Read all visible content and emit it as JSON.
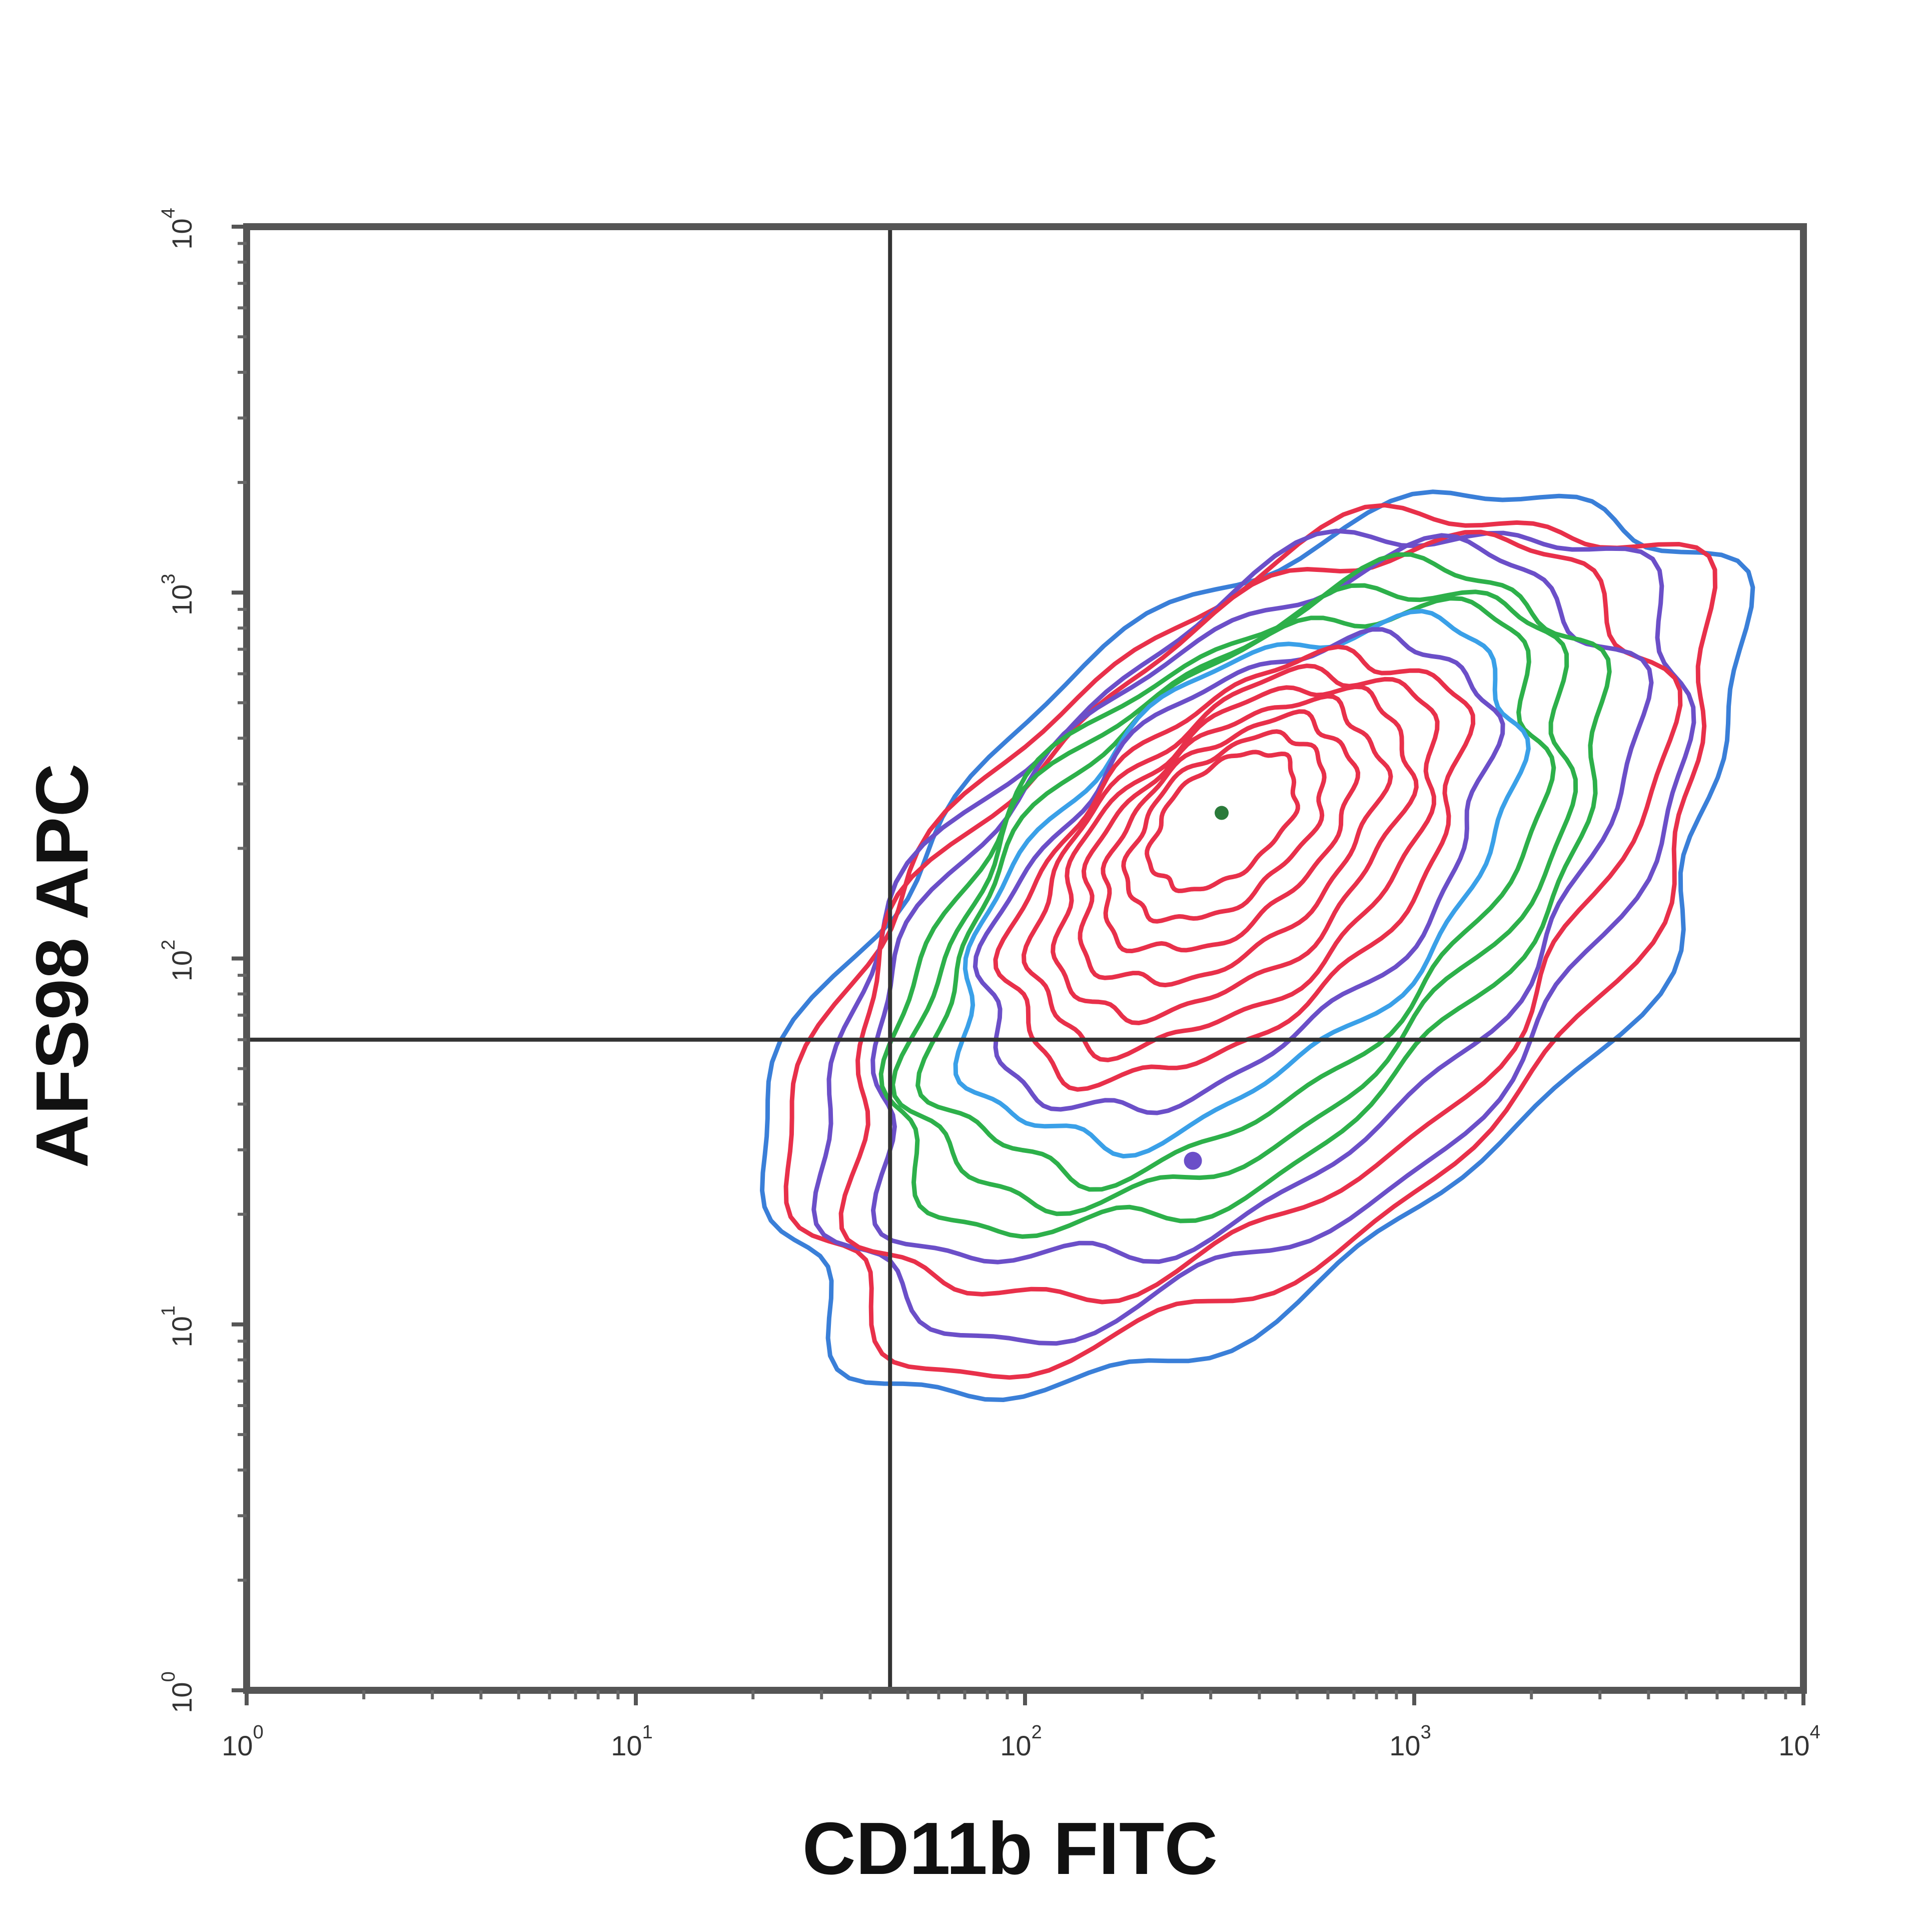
{
  "chart_data": {
    "type": "contour",
    "xlabel": "CD11b FITC",
    "ylabel": "AFS98 APC",
    "x_scale": "log",
    "y_scale": "log",
    "xlim": [
      1,
      10000
    ],
    "ylim": [
      1,
      10000
    ],
    "x_ticks": [
      {
        "value": 1,
        "base": "10",
        "exp": "0"
      },
      {
        "value": 10,
        "base": "10",
        "exp": "1"
      },
      {
        "value": 100,
        "base": "10",
        "exp": "2"
      },
      {
        "value": 1000,
        "base": "10",
        "exp": "3"
      },
      {
        "value": 10000,
        "base": "10",
        "exp": "4"
      }
    ],
    "y_ticks": [
      {
        "value": 1,
        "base": "10",
        "exp": "0"
      },
      {
        "value": 10,
        "base": "10",
        "exp": "1"
      },
      {
        "value": 100,
        "base": "10",
        "exp": "2"
      },
      {
        "value": 1000,
        "base": "10",
        "exp": "3"
      },
      {
        "value": 10000,
        "base": "10",
        "exp": "4"
      }
    ],
    "quadrant_gates": {
      "x": 45,
      "y": 60
    },
    "population": {
      "center": [
        320,
        250
      ],
      "outliers": [
        [
          270,
          28
        ]
      ],
      "contour_colors": [
        "#3a7fd8",
        "#e8304a",
        "#6b4fc8",
        "#e8304a",
        "#6b4fc8",
        "#2db04a",
        "#2db04a",
        "#2db04a",
        "#3aa0e8",
        "#6b4fc8",
        "#e8304a",
        "#e8304a",
        "#e8304a",
        "#e8304a",
        "#e8304a",
        "#e8304a",
        "#e8304a"
      ]
    },
    "grid": false
  }
}
